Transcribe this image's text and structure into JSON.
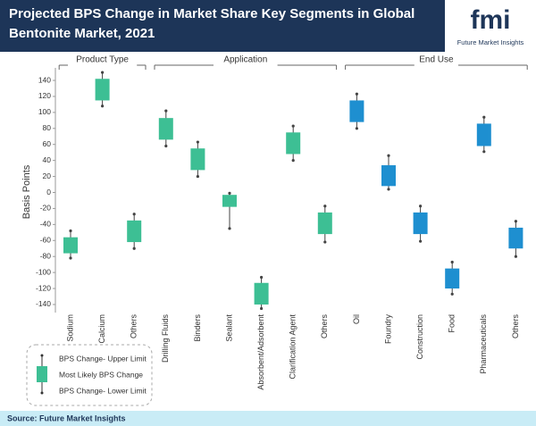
{
  "chart_data": {
    "type": "range-box",
    "title": "Projected BPS Change in Market Share Key Segments in Global Bentonite Market, 2021",
    "title_lines": [
      "Projected BPS Change in Market Share Key Segments in Global",
      "Bentonite Market, 2021"
    ],
    "logo": {
      "mark": "fmi",
      "text": "Future Market Insights"
    },
    "y_label": "Basis Points",
    "ylim": [
      -155,
      155
    ],
    "yticks": [
      140,
      120,
      100,
      80,
      60,
      40,
      20,
      0,
      -20,
      -40,
      -60,
      -80,
      -100,
      -120,
      -140
    ],
    "groups": [
      {
        "name": "Product Type",
        "color": "#3dbf94",
        "categories": [
          "Sodium",
          "Calcium",
          "Others"
        ],
        "upper_limit": [
          -48,
          150,
          -27
        ],
        "box_top": [
          -56,
          142,
          -35
        ],
        "box_bottom": [
          -76,
          115,
          -62
        ],
        "lower_limit": [
          -82,
          108,
          -70
        ]
      },
      {
        "name": "Application",
        "color": "#3dbf94",
        "categories": [
          "Drilling Fluids",
          "Binders",
          "Sealant",
          "Absorbent/Adsorbent",
          "Clarification Agent",
          "Others"
        ],
        "upper_limit": [
          102,
          63,
          -1,
          -106,
          83,
          -17
        ],
        "box_top": [
          93,
          55,
          -3,
          -113,
          75,
          -25
        ],
        "box_bottom": [
          66,
          28,
          -18,
          -140,
          48,
          -52
        ],
        "lower_limit": [
          58,
          20,
          -45,
          -145,
          40,
          -62
        ]
      },
      {
        "name": "End Use",
        "color": "#1e8fd0",
        "categories": [
          "Oil",
          "Foundry",
          "Construction",
          "Food",
          "Pharmaceuticals",
          "Others"
        ],
        "upper_limit": [
          123,
          46,
          -17,
          -87,
          94,
          -36
        ],
        "box_top": [
          115,
          34,
          -25,
          -95,
          86,
          -44
        ],
        "box_bottom": [
          88,
          8,
          -52,
          -120,
          58,
          -70
        ],
        "lower_limit": [
          80,
          4,
          -61,
          -127,
          51,
          -80
        ]
      }
    ],
    "legend": {
      "upper": "BPS Change- Upper Limit",
      "middle": "Most Likely BPS Change",
      "lower": "BPS Change- Lower Limit"
    },
    "source": "Source: Future Market Insights"
  }
}
